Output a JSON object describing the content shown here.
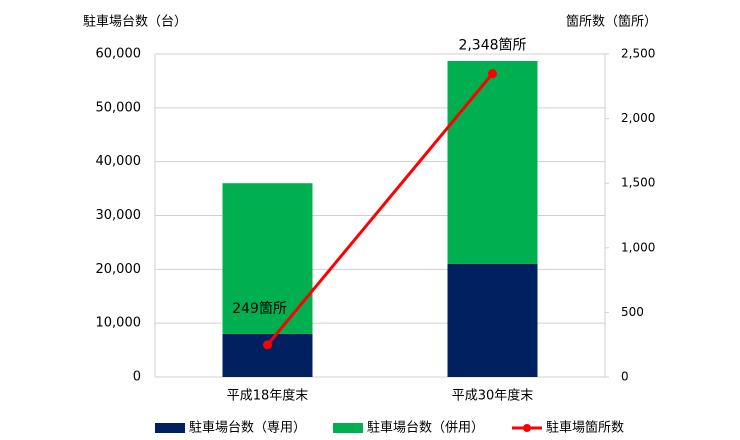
{
  "chart_data": {
    "type": "bar",
    "stacked": true,
    "y_label": "駐車場台数（台）",
    "y2_label": "箇所数（箇所）",
    "categories": [
      "平成18年度末",
      "平成30年度末"
    ],
    "series": [
      {
        "name": "駐車場台数（専用）",
        "type": "bar",
        "color": "#002060",
        "values": [
          8000,
          21000
        ]
      },
      {
        "name": "駐車場台数（併用）",
        "type": "bar",
        "color": "#00b050",
        "values": [
          28000,
          37700
        ]
      },
      {
        "name": "駐車場箇所数",
        "type": "line",
        "axis": "y2",
        "color": "#ff0000",
        "values": [
          249,
          2348
        ],
        "value_labels": [
          "249箇所",
          "2,348箇所"
        ]
      }
    ],
    "ylim": [
      0,
      60000
    ],
    "yticks": [
      0,
      {
        "value": 10000,
        "label": "10,000"
      },
      {
        "value": 20000,
        "label": "20,000"
      },
      {
        "value": 30000,
        "label": "30,000"
      },
      {
        "value": 40000,
        "label": "40,000"
      },
      {
        "value": 50000,
        "label": "50,000"
      },
      {
        "value": 60000,
        "label": "60,000"
      }
    ],
    "y2lim": [
      0,
      2500
    ],
    "y2ticks": [
      0,
      500,
      {
        "value": 1000,
        "label": "1,000"
      },
      {
        "value": 1500,
        "label": "1,500"
      },
      {
        "value": 2000,
        "label": "2,000"
      },
      {
        "value": 2500,
        "label": "2,500"
      }
    ],
    "grid": true,
    "legend": "bottom"
  }
}
